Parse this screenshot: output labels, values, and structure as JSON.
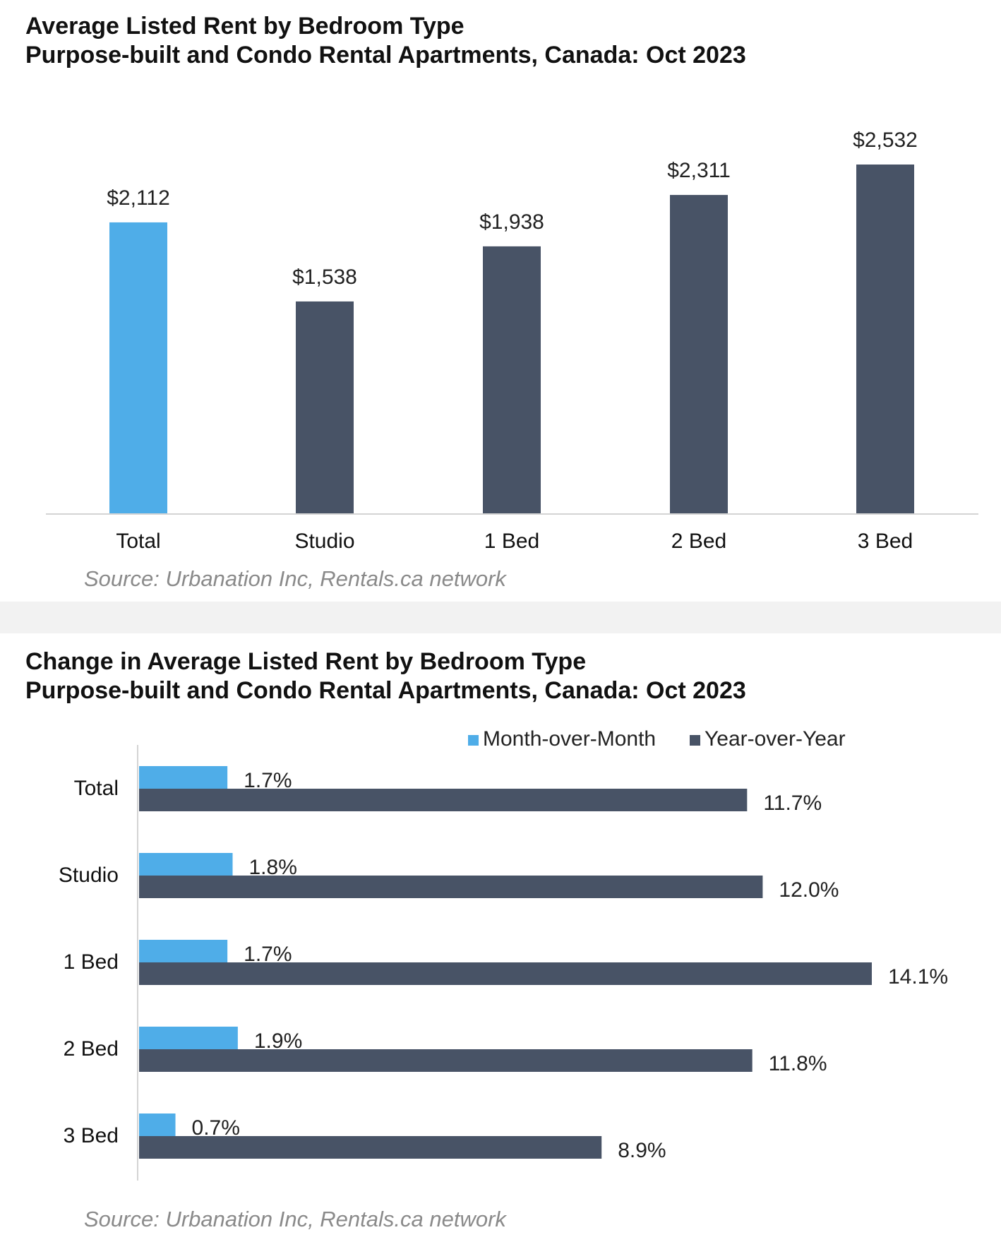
{
  "chart_data": [
    {
      "type": "bar",
      "title": "Average Listed Rent by Bedroom Type",
      "subtitle": "Purpose-built and Condo Rental Apartments, Canada: Oct 2023",
      "categories": [
        "Total",
        "Studio",
        "1 Bed",
        "2 Bed",
        "3 Bed"
      ],
      "values": [
        2112,
        1538,
        1938,
        2311,
        2532
      ],
      "value_labels": [
        "$2,112",
        "$1,538",
        "$1,938",
        "$2,311",
        "$2,532"
      ],
      "colors": [
        "#4fade8",
        "#485366",
        "#485366",
        "#485366",
        "#485366"
      ],
      "ylim": [
        0,
        2532
      ],
      "grid": false,
      "source": "Source: Urbanation Inc, Rentals.ca network"
    },
    {
      "type": "bar",
      "orientation": "horizontal",
      "title": "Change in Average Listed Rent by Bedroom Type",
      "subtitle": "Purpose-built and Condo Rental Apartments, Canada: Oct 2023",
      "categories": [
        "Total",
        "Studio",
        "1 Bed",
        "2 Bed",
        "3 Bed"
      ],
      "series": [
        {
          "name": "Month-over-Month",
          "color": "#4fade8",
          "values": [
            1.7,
            1.8,
            1.7,
            1.9,
            0.7
          ],
          "labels": [
            "1.7%",
            "1.8%",
            "1.7%",
            "1.9%",
            "0.7%"
          ]
        },
        {
          "name": "Year-over-Year",
          "color": "#485366",
          "values": [
            11.7,
            12.0,
            14.1,
            11.8,
            8.9
          ],
          "labels": [
            "11.7%",
            "12.0%",
            "14.1%",
            "11.8%",
            "8.9%"
          ]
        }
      ],
      "xlim": [
        0,
        14.1
      ],
      "legend_position": "top-right",
      "grid": false,
      "source": "Source: Urbanation Inc, Rentals.ca network"
    }
  ]
}
